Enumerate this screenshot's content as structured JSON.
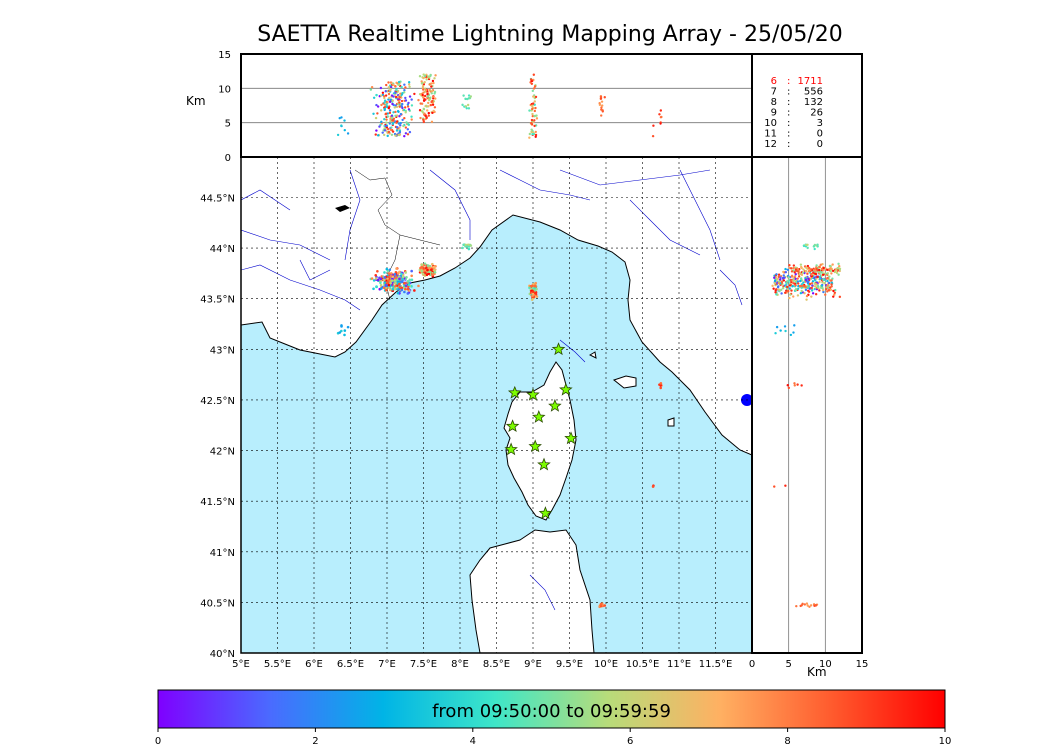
{
  "title": "SAETTA Realtime Lightning Mapping Array - 25/05/20",
  "colorbar": {
    "caption": "from 09:50:00 to 09:59:59",
    "ticks": [
      "0",
      "2",
      "4",
      "6",
      "8",
      "10"
    ],
    "min": 0,
    "max": 10,
    "gradient": [
      "#7f00ff",
      "#4a6bff",
      "#00b4e6",
      "#3ee6c8",
      "#b7dc7a",
      "#ffb062",
      "#ff5a2d",
      "#ff0000"
    ]
  },
  "altitude_panel": {
    "ylabel": "Km",
    "yticks": [
      "0",
      "5",
      "10",
      "15"
    ],
    "ylim": [
      0,
      15
    ]
  },
  "side_panel": {
    "xlabel": "Km",
    "xticks": [
      "0",
      "5",
      "10",
      "15"
    ],
    "xlim": [
      0,
      15
    ]
  },
  "station_counts": [
    {
      "stations": "6",
      "count": "1711",
      "color": "#ff0000"
    },
    {
      "stations": "7",
      "count": "556",
      "color": "#000000"
    },
    {
      "stations": "8",
      "count": "132",
      "color": "#000000"
    },
    {
      "stations": "9",
      "count": "26",
      "color": "#000000"
    },
    {
      "stations": "10",
      "count": "3",
      "color": "#000000"
    },
    {
      "stations": "11",
      "count": "0",
      "color": "#000000"
    },
    {
      "stations": "12",
      "count": "0",
      "color": "#000000"
    }
  ],
  "map": {
    "lon_range": [
      5,
      12.0
    ],
    "lat_range": [
      40,
      44.9
    ],
    "lon_ticks": [
      "5°E",
      "5.5°E",
      "6°E",
      "6.5°E",
      "7°E",
      "7.5°E",
      "8°E",
      "8.5°E",
      "9°E",
      "9.5°E",
      "10°E",
      "10.5°E",
      "11°E",
      "11.5°E"
    ],
    "lat_ticks": [
      "40°N",
      "40.5°N",
      "41°N",
      "41.5°N",
      "42°N",
      "42.5°N",
      "43°N",
      "43.5°N",
      "44°N",
      "44.5°N"
    ],
    "sea_color": "#b8eefd",
    "stations": [
      {
        "lon": 9.35,
        "lat": 43.0
      },
      {
        "lon": 8.75,
        "lat": 42.57
      },
      {
        "lon": 9.0,
        "lat": 42.55
      },
      {
        "lon": 9.45,
        "lat": 42.6
      },
      {
        "lon": 9.3,
        "lat": 42.44
      },
      {
        "lon": 9.08,
        "lat": 42.33
      },
      {
        "lon": 8.72,
        "lat": 42.24
      },
      {
        "lon": 9.52,
        "lat": 42.12
      },
      {
        "lon": 9.03,
        "lat": 42.04
      },
      {
        "lon": 8.7,
        "lat": 42.01
      },
      {
        "lon": 9.15,
        "lat": 41.86
      },
      {
        "lon": 9.17,
        "lat": 41.38
      }
    ],
    "clusters": [
      {
        "lon": 7.1,
        "lat": 43.67,
        "slon": 0.18,
        "slat": 0.08,
        "n": 260,
        "alt": [
          3,
          11
        ],
        "t": [
          0,
          10
        ]
      },
      {
        "lon": 7.55,
        "lat": 43.78,
        "slon": 0.08,
        "slat": 0.04,
        "n": 120,
        "alt": [
          5,
          12
        ],
        "t": [
          5,
          10
        ]
      },
      {
        "lon": 8.1,
        "lat": 44.02,
        "slon": 0.05,
        "slat": 0.02,
        "n": 14,
        "alt": [
          7,
          9
        ],
        "t": [
          4,
          6
        ]
      },
      {
        "lon": 9.0,
        "lat": 43.58,
        "slon": 0.04,
        "slat": 0.05,
        "n": 60,
        "alt": [
          2,
          12
        ],
        "t": [
          4,
          10
        ]
      },
      {
        "lon": 9.95,
        "lat": 40.47,
        "slon": 0.03,
        "slat": 0.02,
        "n": 14,
        "alt": [
          6,
          9
        ],
        "t": [
          7,
          9
        ]
      },
      {
        "lon": 10.75,
        "lat": 42.65,
        "slon": 0.02,
        "slat": 0.02,
        "n": 6,
        "alt": [
          4,
          7
        ],
        "t": [
          8,
          10
        ]
      },
      {
        "lon": 10.65,
        "lat": 41.65,
        "slon": 0.01,
        "slat": 0.01,
        "n": 2,
        "alt": [
          3,
          5
        ],
        "t": [
          8,
          10
        ]
      },
      {
        "lon": 6.4,
        "lat": 43.2,
        "slon": 0.05,
        "slat": 0.05,
        "n": 8,
        "alt": [
          3,
          7
        ],
        "t": [
          2,
          4
        ]
      }
    ]
  }
}
